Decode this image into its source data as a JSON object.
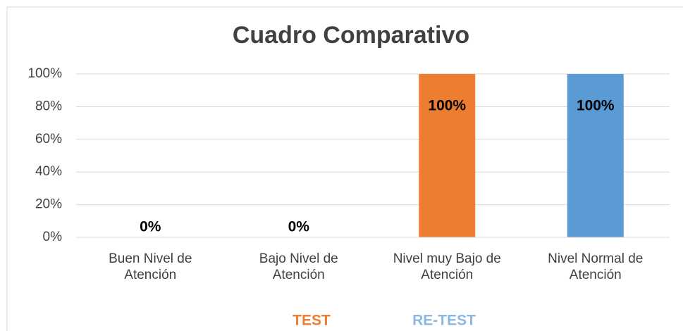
{
  "chart_data": {
    "type": "bar",
    "title": "Cuadro Comparativo",
    "categories": [
      "Buen Nivel de Atención",
      "Bajo Nivel de Atención",
      "Nivel muy Bajo de Atención",
      "Nivel Normal de Atención"
    ],
    "series": [
      {
        "name": "TEST",
        "color": "#ed7d31",
        "values": [
          0,
          0,
          100,
          null
        ],
        "value_labels": [
          "0%",
          "0%",
          "100%",
          null
        ]
      },
      {
        "name": "RE-TEST",
        "color": "#5b9bd5",
        "values": [
          null,
          null,
          null,
          100
        ],
        "value_labels": [
          null,
          null,
          null,
          "100%"
        ]
      }
    ],
    "ylim": [
      0,
      100
    ],
    "yticks": [
      {
        "value": 0,
        "label": "0%"
      },
      {
        "value": 20,
        "label": "20%"
      },
      {
        "value": 40,
        "label": "40%"
      },
      {
        "value": 60,
        "label": "60%"
      },
      {
        "value": 80,
        "label": "80%"
      },
      {
        "value": 100,
        "label": "100%"
      }
    ],
    "grid": true,
    "legend": "bottom"
  }
}
